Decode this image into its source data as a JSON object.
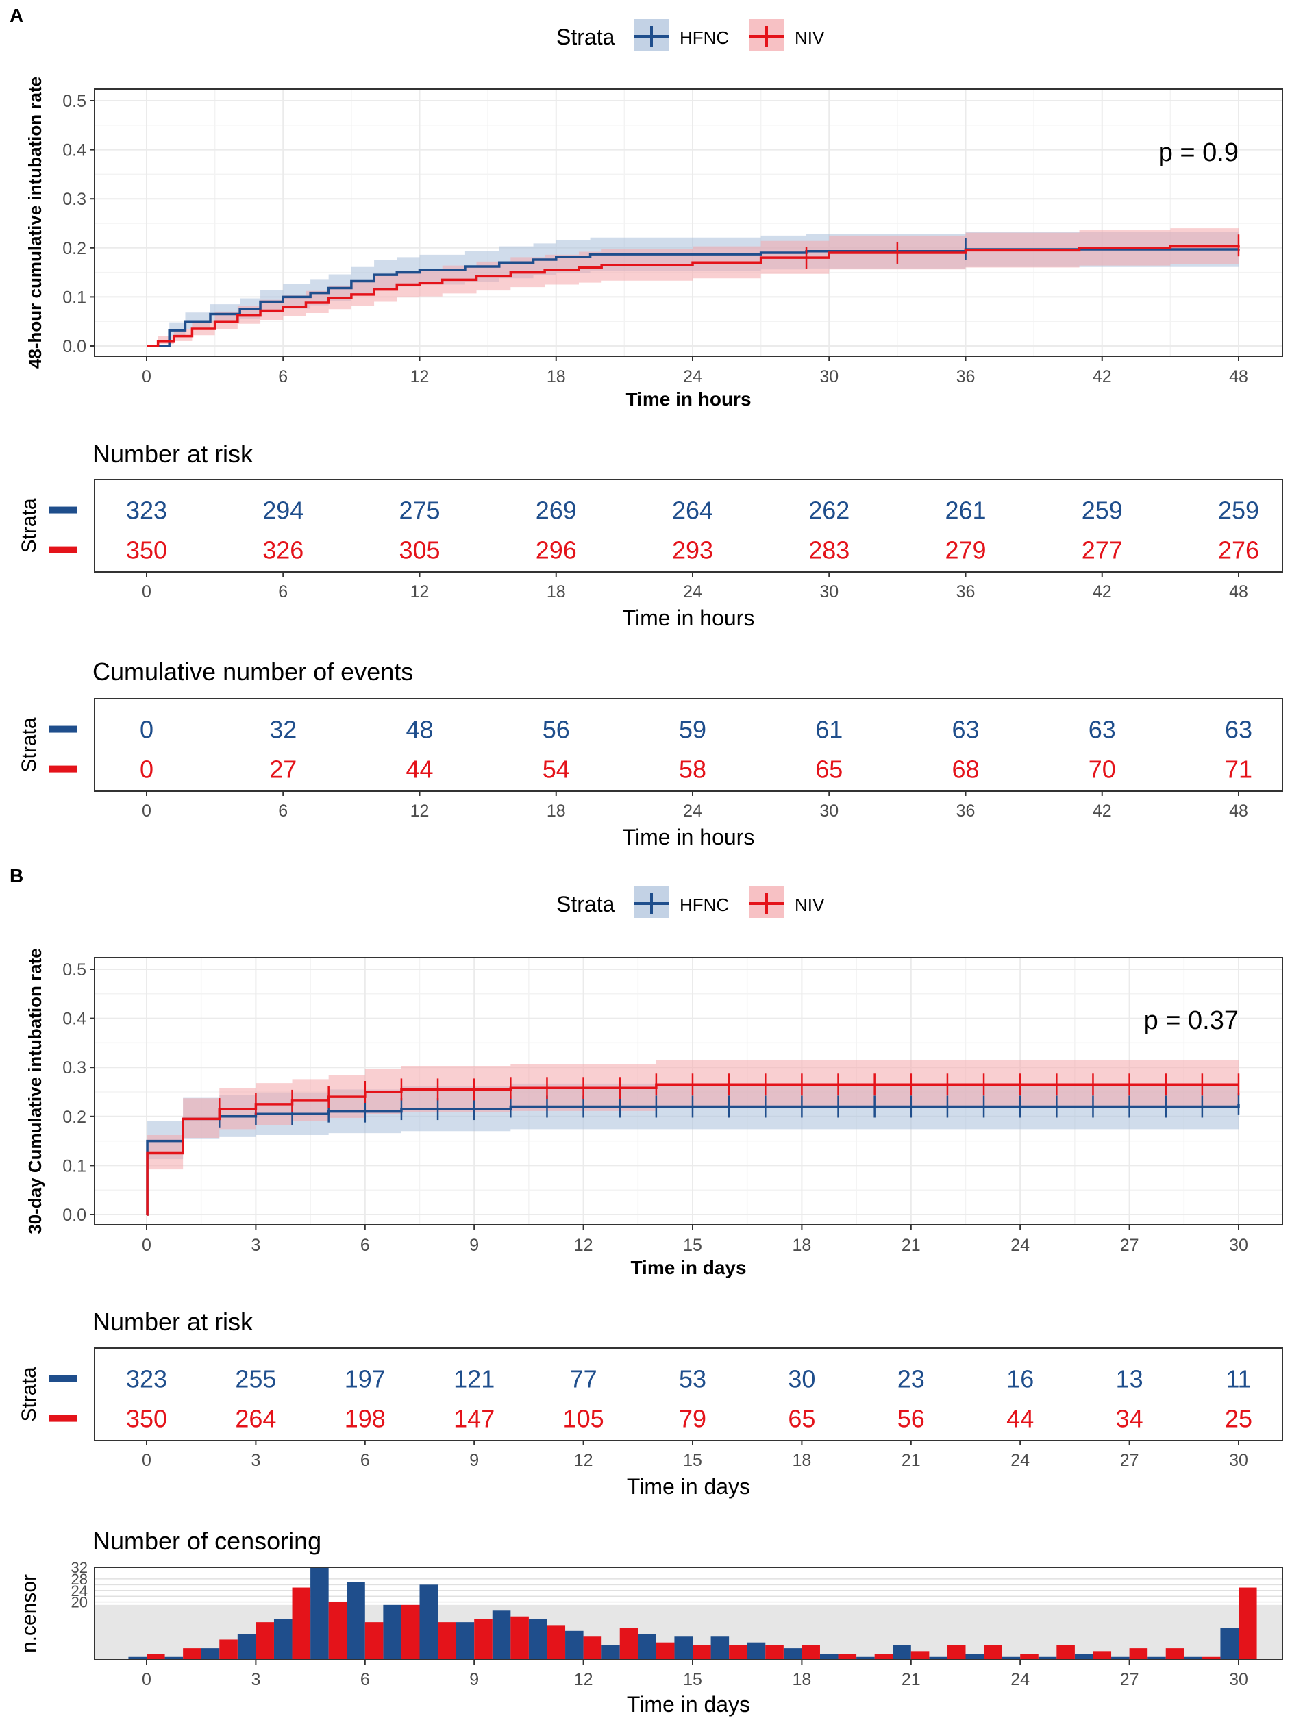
{
  "colors": {
    "hfnc": "#1f4e8c",
    "niv": "#e4131a",
    "hfnc_band": "#a9bfda",
    "niv_band": "#f4a7ab",
    "grid": "#ebebeb",
    "axis_text": "#4d4d4d"
  },
  "strata_title": "Strata",
  "panels": [
    {
      "label": "A",
      "legend": {
        "title": "Strata",
        "hfnc": "HFNC",
        "niv": "NIV"
      },
      "p_value": "p = 0.9"
    },
    {
      "label": "B",
      "legend": {
        "title": "Strata",
        "hfnc": "HFNC",
        "niv": "NIV"
      },
      "p_value": "p = 0.37"
    }
  ],
  "chart_data": [
    {
      "id": "A-km",
      "type": "line",
      "title": "",
      "xlabel": "Time in hours",
      "ylabel": "48-hour cumulative intubation rate",
      "xlim": [
        0,
        48
      ],
      "ylim": [
        0,
        0.5
      ],
      "xticks": [
        0,
        6,
        12,
        18,
        24,
        30,
        36,
        42,
        48
      ],
      "yticks": [
        0.0,
        0.1,
        0.2,
        0.3,
        0.4,
        0.5
      ],
      "ytick_labels": [
        "0.0",
        "0.1",
        "0.2",
        "0.3",
        "0.4",
        "0.5"
      ],
      "series": [
        {
          "name": "HFNC",
          "x": [
            0,
            1,
            1.7,
            2.8,
            4.1,
            5,
            6,
            7.2,
            8,
            9,
            10,
            11,
            12,
            14,
            15.5,
            17,
            18,
            19.5,
            27,
            29,
            36,
            48
          ],
          "y": [
            0,
            0.032,
            0.05,
            0.065,
            0.075,
            0.09,
            0.1,
            0.108,
            0.118,
            0.132,
            0.145,
            0.15,
            0.155,
            0.162,
            0.17,
            0.176,
            0.182,
            0.187,
            0.19,
            0.193,
            0.197,
            0.198
          ],
          "lower": [
            0,
            0.02,
            0.035,
            0.048,
            0.056,
            0.068,
            0.076,
            0.083,
            0.092,
            0.104,
            0.116,
            0.121,
            0.125,
            0.131,
            0.138,
            0.144,
            0.149,
            0.153,
            0.156,
            0.158,
            0.161,
            0.161
          ],
          "upper": [
            0,
            0.048,
            0.068,
            0.085,
            0.097,
            0.114,
            0.126,
            0.135,
            0.146,
            0.161,
            0.175,
            0.181,
            0.186,
            0.194,
            0.203,
            0.209,
            0.215,
            0.221,
            0.225,
            0.228,
            0.233,
            0.234
          ],
          "censor_x": [
            36
          ]
        },
        {
          "name": "NIV",
          "x": [
            0,
            0.5,
            1.2,
            2,
            3,
            4,
            5,
            6,
            7,
            8,
            9,
            10,
            11,
            12,
            13,
            14.5,
            16,
            17.5,
            19,
            20,
            24,
            27,
            30,
            36,
            41,
            45,
            48
          ],
          "y": [
            0,
            0.01,
            0.02,
            0.035,
            0.05,
            0.062,
            0.072,
            0.08,
            0.088,
            0.098,
            0.105,
            0.115,
            0.125,
            0.128,
            0.135,
            0.142,
            0.15,
            0.155,
            0.16,
            0.165,
            0.17,
            0.18,
            0.19,
            0.195,
            0.2,
            0.203,
            0.205
          ],
          "lower": [
            0,
            0.004,
            0.01,
            0.022,
            0.034,
            0.045,
            0.053,
            0.06,
            0.067,
            0.075,
            0.081,
            0.09,
            0.099,
            0.101,
            0.107,
            0.113,
            0.12,
            0.125,
            0.129,
            0.133,
            0.138,
            0.147,
            0.156,
            0.16,
            0.164,
            0.167,
            0.168
          ],
          "upper": [
            0,
            0.02,
            0.034,
            0.052,
            0.07,
            0.082,
            0.094,
            0.103,
            0.112,
            0.123,
            0.131,
            0.143,
            0.153,
            0.157,
            0.164,
            0.172,
            0.181,
            0.186,
            0.192,
            0.198,
            0.203,
            0.214,
            0.225,
            0.231,
            0.236,
            0.24,
            0.243
          ],
          "censor_x": [
            29,
            33,
            48
          ]
        }
      ]
    },
    {
      "id": "A-risk",
      "type": "table",
      "title": "Number at risk",
      "xlabel": "Time in hours",
      "ylabel": "Strata",
      "xlim": [
        0,
        48
      ],
      "x": [
        0,
        6,
        12,
        18,
        24,
        30,
        36,
        42,
        48
      ],
      "series": [
        {
          "name": "HFNC",
          "values": [
            323,
            294,
            275,
            269,
            264,
            262,
            261,
            259,
            259
          ]
        },
        {
          "name": "NIV",
          "values": [
            350,
            326,
            305,
            296,
            293,
            283,
            279,
            277,
            276
          ]
        }
      ]
    },
    {
      "id": "A-events",
      "type": "table",
      "title": "Cumulative number of events",
      "xlabel": "Time in hours",
      "ylabel": "Strata",
      "xlim": [
        0,
        48
      ],
      "x": [
        0,
        6,
        12,
        18,
        24,
        30,
        36,
        42,
        48
      ],
      "series": [
        {
          "name": "HFNC",
          "values": [
            0,
            32,
            48,
            56,
            59,
            61,
            63,
            63,
            63
          ]
        },
        {
          "name": "NIV",
          "values": [
            0,
            27,
            44,
            54,
            58,
            65,
            68,
            70,
            71
          ]
        }
      ]
    },
    {
      "id": "B-km",
      "type": "line",
      "title": "",
      "xlabel": "Time in days",
      "ylabel": "30-day Cumulative intubation rate",
      "xlim": [
        0,
        30
      ],
      "ylim": [
        0,
        0.5
      ],
      "xticks": [
        0,
        3,
        6,
        9,
        12,
        15,
        18,
        21,
        24,
        27,
        30
      ],
      "yticks": [
        0.0,
        0.1,
        0.2,
        0.3,
        0.4,
        0.5
      ],
      "ytick_labels": [
        "0.0",
        "0.1",
        "0.2",
        "0.3",
        "0.4",
        "0.5"
      ],
      "series": [
        {
          "name": "HFNC",
          "x": [
            0,
            0.02,
            1,
            2,
            3,
            5,
            7,
            10,
            30
          ],
          "y": [
            0,
            0.15,
            0.195,
            0.2,
            0.205,
            0.21,
            0.215,
            0.22,
            0.225
          ],
          "lower": [
            0,
            0.113,
            0.154,
            0.158,
            0.162,
            0.166,
            0.17,
            0.174,
            0.178
          ],
          "upper": [
            0,
            0.19,
            0.238,
            0.243,
            0.249,
            0.255,
            0.261,
            0.267,
            0.273
          ],
          "censor_x": [
            2,
            3,
            4,
            5,
            6,
            7,
            8,
            9,
            10,
            11,
            12,
            13,
            14,
            15,
            16,
            17,
            18,
            19,
            20,
            21,
            22,
            23,
            24,
            25,
            26,
            27,
            28,
            29,
            30
          ]
        },
        {
          "name": "NIV",
          "x": [
            0,
            0.02,
            1,
            2,
            3,
            4,
            5,
            6,
            7,
            10,
            14,
            30
          ],
          "y": [
            0,
            0.125,
            0.195,
            0.215,
            0.225,
            0.232,
            0.24,
            0.25,
            0.255,
            0.258,
            0.265,
            0.265
          ],
          "lower": [
            0,
            0.092,
            0.155,
            0.174,
            0.183,
            0.19,
            0.197,
            0.205,
            0.209,
            0.211,
            0.217,
            0.217
          ],
          "upper": [
            0,
            0.162,
            0.237,
            0.258,
            0.268,
            0.276,
            0.285,
            0.297,
            0.303,
            0.307,
            0.315,
            0.315
          ],
          "censor_x": [
            2,
            3,
            4,
            5,
            6,
            7,
            8,
            9,
            10,
            11,
            12,
            13,
            14,
            15,
            16,
            17,
            18,
            19,
            20,
            21,
            22,
            23,
            24,
            25,
            26,
            27,
            28,
            29,
            30
          ]
        }
      ]
    },
    {
      "id": "B-risk",
      "type": "table",
      "title": "Number at risk",
      "xlabel": "Time in days",
      "ylabel": "Strata",
      "xlim": [
        0,
        30
      ],
      "x": [
        0,
        3,
        6,
        9,
        12,
        15,
        18,
        21,
        24,
        27,
        30
      ],
      "series": [
        {
          "name": "HFNC",
          "values": [
            323,
            255,
            197,
            121,
            77,
            53,
            30,
            23,
            16,
            13,
            11
          ]
        },
        {
          "name": "NIV",
          "values": [
            350,
            264,
            198,
            147,
            105,
            79,
            65,
            56,
            44,
            34,
            25
          ]
        }
      ]
    },
    {
      "id": "B-censor",
      "type": "bar",
      "title": "Number of censoring",
      "xlabel": "Time in days",
      "ylabel": "n.censor",
      "xlim": [
        0,
        30
      ],
      "ylim": [
        0,
        32
      ],
      "xticks": [
        0,
        3,
        6,
        9,
        12,
        15,
        18,
        21,
        24,
        27,
        30
      ],
      "ytick_labels_top": [
        "32",
        "28",
        "24",
        "20"
      ],
      "categories": [
        0,
        1,
        2,
        3,
        4,
        5,
        6,
        7,
        8,
        9,
        10,
        11,
        12,
        13,
        14,
        15,
        16,
        17,
        18,
        19,
        20,
        21,
        22,
        23,
        24,
        25,
        26,
        27,
        28,
        29,
        30
      ],
      "series": [
        {
          "name": "HFNC",
          "values": [
            1,
            1,
            4,
            9,
            14,
            32,
            27,
            19,
            26,
            13,
            17,
            14,
            10,
            5,
            9,
            8,
            8,
            6,
            4,
            2,
            1,
            5,
            1,
            2,
            1,
            1,
            2,
            1,
            1,
            1,
            11
          ]
        },
        {
          "name": "NIV",
          "values": [
            2,
            4,
            7,
            13,
            25,
            20,
            13,
            19,
            13,
            14,
            15,
            12,
            8,
            11,
            6,
            5,
            5,
            5,
            5,
            2,
            2,
            3,
            5,
            5,
            2,
            5,
            3,
            4,
            4,
            1,
            25
          ]
        }
      ]
    }
  ]
}
